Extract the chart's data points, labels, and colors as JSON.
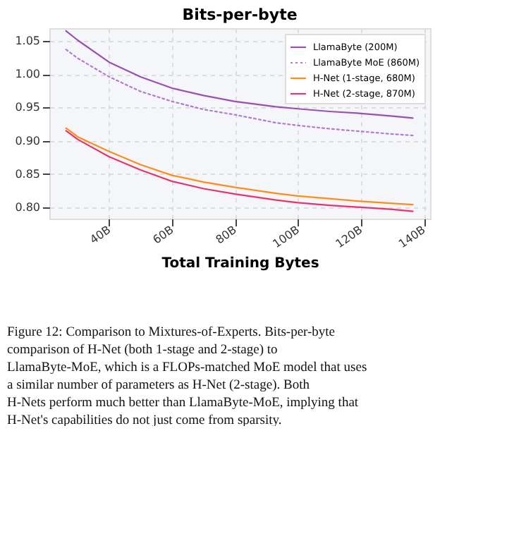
{
  "chart_data": {
    "type": "line",
    "title": "Bits-per-byte",
    "xlabel": "Total Training Bytes",
    "x": [
      26.3,
      30,
      40,
      50,
      60,
      70,
      80,
      93,
      100,
      110,
      120,
      130,
      136.5
    ],
    "xlim": [
      21,
      142
    ],
    "xticks": [
      {
        "value": 40,
        "label": "40B"
      },
      {
        "value": 60,
        "label": "60B"
      },
      {
        "value": 80,
        "label": "80B"
      },
      {
        "value": 100,
        "label": "100B"
      },
      {
        "value": 120,
        "label": "120B"
      },
      {
        "value": 140,
        "label": "140B"
      }
    ],
    "ylim": [
      0.783,
      1.069
    ],
    "yticks": [
      {
        "value": 0.8,
        "label": "0.80"
      },
      {
        "value": 0.85,
        "label": "0.85"
      },
      {
        "value": 0.9,
        "label": "0.90"
      },
      {
        "value": 0.95,
        "label": "0.95"
      },
      {
        "value": 1.0,
        "label": "1.00"
      },
      {
        "value": 1.05,
        "label": "1.05"
      }
    ],
    "grid": true,
    "legend": "top right",
    "marker": "none",
    "series": [
      {
        "name": "LlamaByte (200M)",
        "color": "#9b4fb5",
        "line_style": "solid",
        "values": [
          1.065,
          1.051,
          1.018,
          0.996,
          0.979,
          0.968,
          0.959,
          0.951,
          0.948,
          0.944,
          0.941,
          0.937,
          0.934
        ]
      },
      {
        "name": "LlamaByte MoE (860M)",
        "color": "#b27ccc",
        "line_style": "dotted",
        "values": [
          1.037,
          1.024,
          0.996,
          0.974,
          0.959,
          0.947,
          0.939,
          0.927,
          0.923,
          0.918,
          0.914,
          0.91,
          0.908
        ]
      },
      {
        "name": "H-Net (1-stage, 680M)",
        "color": "#ff8c1a",
        "line_style": "solid",
        "values": [
          0.919,
          0.906,
          0.884,
          0.864,
          0.848,
          0.838,
          0.83,
          0.821,
          0.817,
          0.813,
          0.809,
          0.806,
          0.804
        ]
      },
      {
        "name": "H-Net (2-stage, 870M)",
        "color": "#e8336b",
        "line_style": "solid",
        "values": [
          0.915,
          0.902,
          0.876,
          0.856,
          0.839,
          0.828,
          0.82,
          0.811,
          0.807,
          0.803,
          0.8,
          0.797,
          0.794
        ]
      }
    ],
    "annotations": [
      "Figure 12: Comparison to Mixtures-of-Experts. Bits-per-byte comparison of H-Net (both 1-stage and 2-stage) to LlamaByte-MoE, which is a FLOPs-matched MoE model that uses a similar number of parameters as H-Net (2-stage). Both H-Nets perform much better than LlamaByte-MoE, implying that H-Net's capabilities do not just come from sparsity."
    ]
  }
}
